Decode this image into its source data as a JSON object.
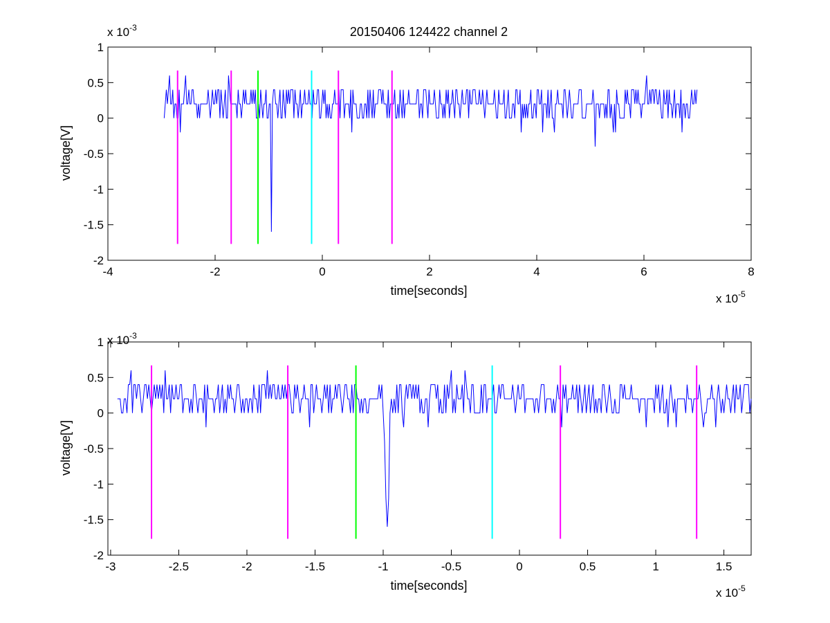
{
  "chart_data": [
    {
      "type": "line",
      "title": "20150406 124422 channel 2",
      "xlabel": "time[seconds]",
      "ylabel": "voltage[V]",
      "x_multiplier": "x 10",
      "x_exponent": "-5",
      "y_multiplier": "x 10",
      "y_exponent": "-3",
      "xlim": [
        -4,
        8
      ],
      "ylim": [
        -2,
        1
      ],
      "x_ticks": [
        -4,
        -2,
        0,
        2,
        4,
        6,
        8
      ],
      "x_tick_labels": [
        "-4",
        "-2",
        "0",
        "2",
        "4",
        "6",
        "8"
      ],
      "y_ticks": [
        -2,
        -1.5,
        -1,
        -0.5,
        0,
        0.5,
        1
      ],
      "y_tick_labels": [
        "-2",
        "-1.5",
        "-1",
        "-0.5",
        "0",
        "0.5",
        "1"
      ],
      "grid": false,
      "signal": {
        "color": "#0000ff",
        "x_start": -2.95,
        "x_end": 7.0,
        "sample_step": 0.02,
        "levels": [
          -0.2,
          0,
          0.2,
          0.4,
          0.6
        ],
        "baseline": 0.2,
        "spikes": [
          {
            "x": -0.95,
            "y": -1.6
          },
          {
            "x": 5.1,
            "y": -0.4
          },
          {
            "x": 6.05,
            "y": 0.6
          },
          {
            "x": -2.85,
            "y": 0.6
          },
          {
            "x": -2.55,
            "y": 0.6
          },
          {
            "x": -1.75,
            "y": 0.6
          }
        ]
      },
      "markers": [
        {
          "x": -2.7,
          "y_top": 0.67,
          "y_bottom": -1.77,
          "color": "#ff00ff"
        },
        {
          "x": -1.7,
          "y_top": 0.67,
          "y_bottom": -1.77,
          "color": "#ff00ff"
        },
        {
          "x": -1.2,
          "y_top": 0.67,
          "y_bottom": -1.77,
          "color": "#00ff00"
        },
        {
          "x": -0.2,
          "y_top": 0.67,
          "y_bottom": -1.77,
          "color": "#00ffff"
        },
        {
          "x": 0.3,
          "y_top": 0.67,
          "y_bottom": -1.77,
          "color": "#ff00ff"
        },
        {
          "x": 1.3,
          "y_top": 0.67,
          "y_bottom": -1.77,
          "color": "#ff00ff"
        }
      ]
    },
    {
      "type": "line",
      "title": "",
      "xlabel": "time[seconds]",
      "ylabel": "voltage[V]",
      "x_multiplier": "x 10",
      "x_exponent": "-5",
      "y_multiplier": "x 10",
      "y_exponent": "-3",
      "xlim": [
        -3.02,
        1.7
      ],
      "ylim": [
        -2,
        1
      ],
      "x_ticks": [
        -3,
        -2.5,
        -2,
        -1.5,
        -1,
        -0.5,
        0,
        0.5,
        1,
        1.5
      ],
      "x_tick_labels": [
        "-3",
        "-2.5",
        "-2",
        "-1.5",
        "-1",
        "-0.5",
        "0",
        "0.5",
        "1",
        "1.5"
      ],
      "y_ticks": [
        -2,
        -1.5,
        -1,
        -0.5,
        0,
        0.5,
        1
      ],
      "y_tick_labels": [
        "-2",
        "-1.5",
        "-1",
        "-0.5",
        "0",
        "0.5",
        "1"
      ],
      "grid": false,
      "signal": {
        "color": "#0000ff",
        "x_start": -2.95,
        "x_end": 1.7,
        "sample_step": 0.01,
        "levels": [
          -0.2,
          0,
          0.2,
          0.4,
          0.6
        ],
        "baseline": 0.2,
        "spikes": [
          {
            "x": -2.85,
            "y": 0.6
          },
          {
            "x": -2.6,
            "y": 0.6
          },
          {
            "x": -2.3,
            "y": -0.2
          },
          {
            "x": -1.85,
            "y": 0.6
          },
          {
            "x": -0.99,
            "y": -0.4
          },
          {
            "x": -0.98,
            "y": -1.2
          },
          {
            "x": -0.97,
            "y": -1.6
          },
          {
            "x": -0.96,
            "y": -1.2
          },
          {
            "x": -0.5,
            "y": 0.6
          },
          {
            "x": -0.4,
            "y": 0.6
          },
          {
            "x": 1.35,
            "y": -0.2
          }
        ]
      },
      "markers": [
        {
          "x": -2.7,
          "y_top": 0.67,
          "y_bottom": -1.77,
          "color": "#ff00ff"
        },
        {
          "x": -1.7,
          "y_top": 0.67,
          "y_bottom": -1.77,
          "color": "#ff00ff"
        },
        {
          "x": -1.2,
          "y_top": 0.67,
          "y_bottom": -1.77,
          "color": "#00ff00"
        },
        {
          "x": -0.2,
          "y_top": 0.67,
          "y_bottom": -1.77,
          "color": "#00ffff"
        },
        {
          "x": 0.3,
          "y_top": 0.67,
          "y_bottom": -1.77,
          "color": "#ff00ff"
        },
        {
          "x": 1.3,
          "y_top": 0.67,
          "y_bottom": -1.77,
          "color": "#ff00ff"
        }
      ]
    }
  ]
}
